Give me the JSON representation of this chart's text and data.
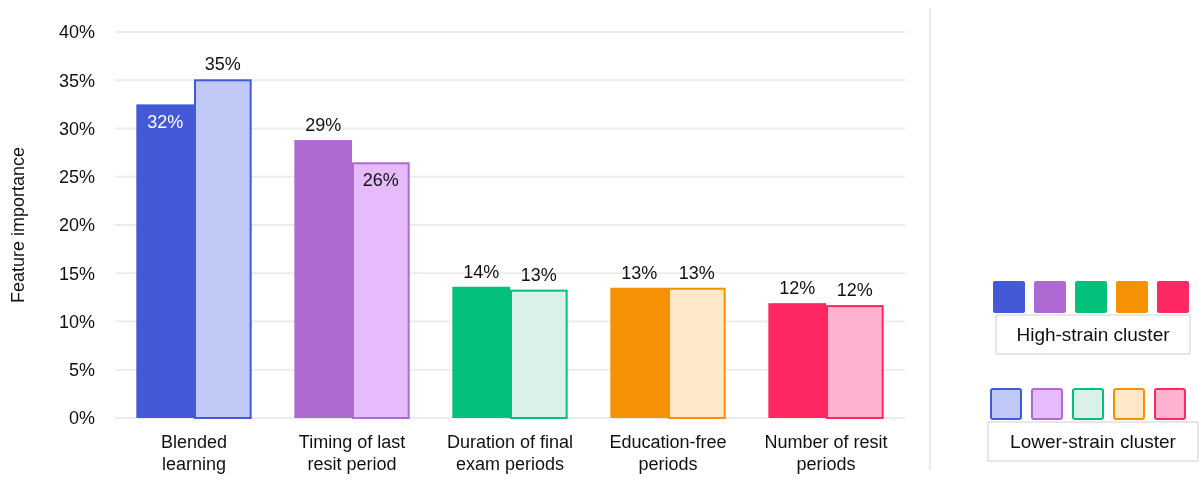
{
  "chart_data": {
    "type": "bar",
    "ylabel": "Feature importance",
    "categories": [
      "Blended\nlearning",
      "Timing of last\nresit period",
      "Duration of final\nexam periods",
      "Education-free\nperiods",
      "Number of resit\nperiods"
    ],
    "series": [
      {
        "name": "High-strain cluster",
        "colors": [
          "#4459d8",
          "#ae6ad2",
          "#03c07a",
          "#f59102",
          "#ff2862"
        ],
        "values": [
          32.5,
          28.8,
          13.6,
          13.5,
          11.9
        ],
        "value_labels": [
          "32%",
          "29%",
          "14%",
          "13%",
          "12%"
        ]
      },
      {
        "name": "Lower-strain cluster",
        "colors": [
          "#c0c8f5",
          "#e6bbfb",
          "#daf1ea",
          "#fee8c7",
          "#feb2d0"
        ],
        "values": [
          35.1,
          26.5,
          13.3,
          13.5,
          11.7
        ],
        "value_labels": [
          "35%",
          "26%",
          "13%",
          "13%",
          "12%"
        ]
      }
    ],
    "ylim": [
      0,
      40
    ],
    "yticks": [
      {
        "value": 0,
        "label": "0%"
      },
      {
        "value": 5,
        "label": "5%"
      },
      {
        "value": 10,
        "label": "10%"
      },
      {
        "value": 15,
        "label": "15%"
      },
      {
        "value": 20,
        "label": "20%"
      },
      {
        "value": 25,
        "label": "25%"
      },
      {
        "value": 30,
        "label": "30%"
      },
      {
        "value": 35,
        "label": "35%"
      },
      {
        "value": 40,
        "label": "40%"
      }
    ],
    "grid": "y",
    "legend": "right"
  }
}
